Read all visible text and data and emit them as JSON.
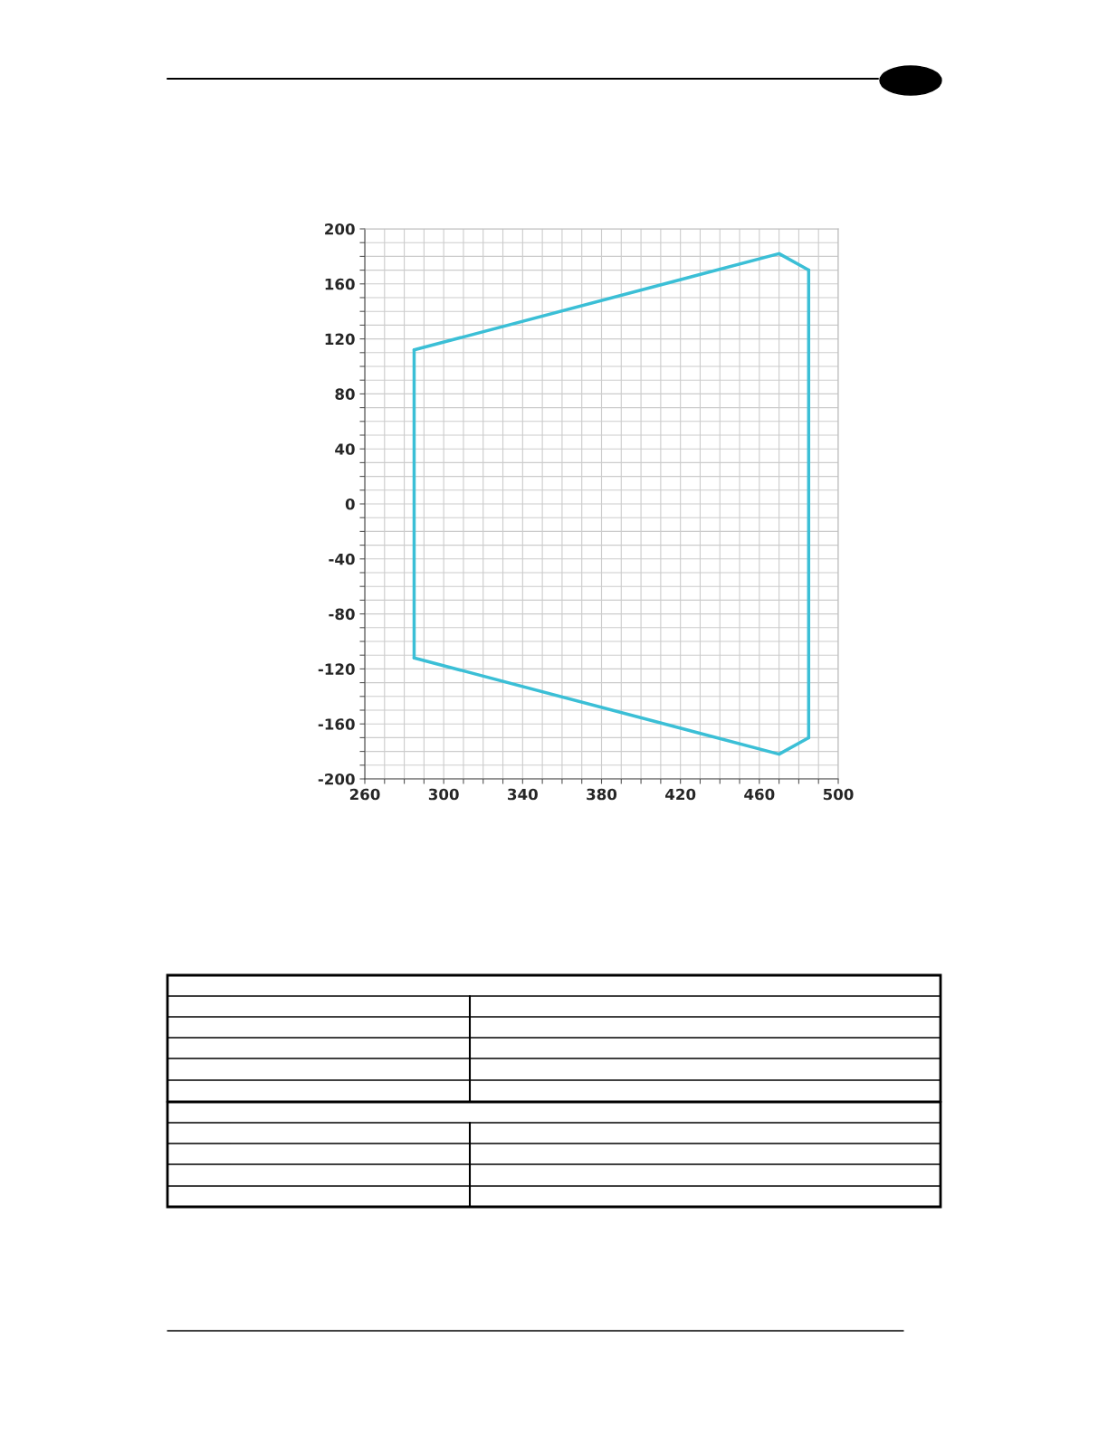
{
  "chart_data": {
    "type": "line",
    "series": [
      {
        "color": "#3bbfd6",
        "x": [
          285,
          470,
          485
        ],
        "values": [
          112,
          182,
          170
        ]
      },
      {
        "color": "#3bbfd6",
        "x": [
          485,
          485
        ],
        "values": [
          170,
          -170
        ]
      },
      {
        "color": "#3bbfd6",
        "x": [
          285,
          470,
          485
        ],
        "values": [
          -112,
          -182,
          -170
        ]
      },
      {
        "color": "#3bbfd6",
        "x": [
          285,
          285
        ],
        "values": [
          -112,
          112
        ]
      }
    ],
    "xlim": [
      260,
      500
    ],
    "xticks": [
      260,
      {
        "value": 270,
        "label": null
      },
      {
        "value": 280,
        "label": null
      },
      {
        "value": 290,
        "label": null
      },
      300,
      {
        "value": 310,
        "label": null
      },
      {
        "value": 320,
        "label": null
      },
      {
        "value": 330,
        "label": null
      },
      340,
      {
        "value": 350,
        "label": null
      },
      {
        "value": 360,
        "label": null
      },
      {
        "value": 370,
        "label": null
      },
      380,
      {
        "value": 390,
        "label": null
      },
      {
        "value": 400,
        "label": null
      },
      {
        "value": 410,
        "label": null
      },
      420,
      {
        "value": 430,
        "label": null
      },
      {
        "value": 440,
        "label": null
      },
      {
        "value": 450,
        "label": null
      },
      460,
      {
        "value": 470,
        "label": null
      },
      {
        "value": 480,
        "label": null
      },
      {
        "value": 490,
        "label": null
      },
      500
    ],
    "ylim": [
      -200,
      200
    ],
    "yticks": [
      -200,
      {
        "value": -190,
        "label": null
      },
      {
        "value": -180,
        "label": null
      },
      {
        "value": -170,
        "label": null
      },
      -160,
      {
        "value": -150,
        "label": null
      },
      {
        "value": -140,
        "label": null
      },
      {
        "value": -130,
        "label": null
      },
      -120,
      {
        "value": -110,
        "label": null
      },
      {
        "value": -100,
        "label": null
      },
      {
        "value": -90,
        "label": null
      },
      -80,
      {
        "value": -70,
        "label": null
      },
      {
        "value": -60,
        "label": null
      },
      {
        "value": -50,
        "label": null
      },
      -40,
      {
        "value": -30,
        "label": null
      },
      {
        "value": -20,
        "label": null
      },
      {
        "value": -10,
        "label": null
      },
      0,
      {
        "value": 10,
        "label": null
      },
      {
        "value": 20,
        "label": null
      },
      {
        "value": 30,
        "label": null
      },
      40,
      {
        "value": 50,
        "label": null
      },
      {
        "value": 60,
        "label": null
      },
      {
        "value": 70,
        "label": null
      },
      80,
      {
        "value": 90,
        "label": null
      },
      {
        "value": 100,
        "label": null
      },
      {
        "value": 110,
        "label": null
      },
      120,
      {
        "value": 130,
        "label": null
      },
      {
        "value": 140,
        "label": null
      },
      {
        "value": 150,
        "label": null
      },
      160,
      {
        "value": 170,
        "label": null
      },
      {
        "value": 180,
        "label": null
      },
      {
        "value": 190,
        "label": null
      },
      200
    ],
    "grid": true,
    "marker": "none",
    "line_style": "solid",
    "legend": false
  }
}
